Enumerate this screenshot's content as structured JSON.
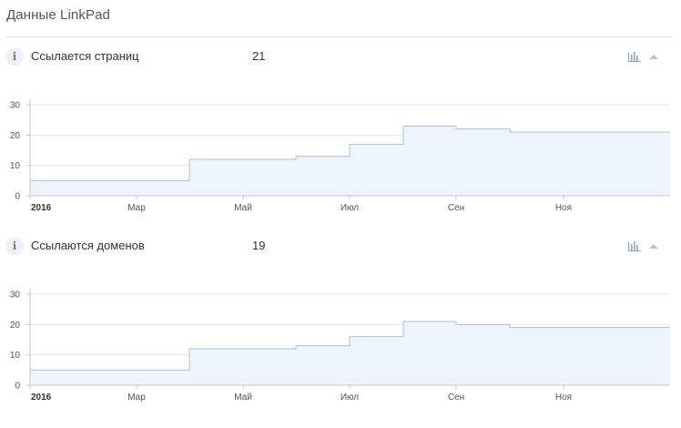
{
  "page": {
    "title": "Данные LinkPad"
  },
  "sections": [
    {
      "label": "Ссылается страниц",
      "value": "21",
      "info_icon": "i",
      "chart_icon": "bar-chart-icon",
      "collapse_icon": "chevron-up-icon"
    },
    {
      "label": "Ссылаются доменов",
      "value": "19",
      "info_icon": "i",
      "chart_icon": "bar-chart-icon",
      "collapse_icon": "chevron-up-icon"
    }
  ],
  "colors": {
    "area_fill": "#eef4fd",
    "area_line": "#a9c1d9",
    "grid": "#e6e6e6",
    "axis": "#c8c8c8",
    "icon": "#9aa6b2"
  },
  "chart_data": [
    {
      "type": "area",
      "title": "Ссылается страниц",
      "step": true,
      "x": [
        "2016-01",
        "2016-02",
        "2016-03",
        "2016-04",
        "2016-05",
        "2016-06",
        "2016-07",
        "2016-08",
        "2016-09",
        "2016-10",
        "2016-11",
        "2016-12"
      ],
      "values": [
        5,
        5,
        5,
        12,
        12,
        13,
        17,
        23,
        22,
        21,
        21,
        21
      ],
      "x_tick_labels": [
        "2016",
        "Мар",
        "Май",
        "Июл",
        "Сен",
        "Ноя"
      ],
      "y_ticks": [
        0,
        10,
        20,
        30
      ],
      "ylim": [
        0,
        30
      ],
      "grid": true
    },
    {
      "type": "area",
      "title": "Ссылаются доменов",
      "step": true,
      "x": [
        "2016-01",
        "2016-02",
        "2016-03",
        "2016-04",
        "2016-05",
        "2016-06",
        "2016-07",
        "2016-08",
        "2016-09",
        "2016-10",
        "2016-11",
        "2016-12"
      ],
      "values": [
        5,
        5,
        5,
        12,
        12,
        13,
        16,
        21,
        20,
        19,
        19,
        19
      ],
      "x_tick_labels": [
        "2016",
        "Мар",
        "Май",
        "Июл",
        "Сен",
        "Ноя"
      ],
      "y_ticks": [
        0,
        10,
        20,
        30
      ],
      "ylim": [
        0,
        30
      ],
      "grid": true
    }
  ]
}
